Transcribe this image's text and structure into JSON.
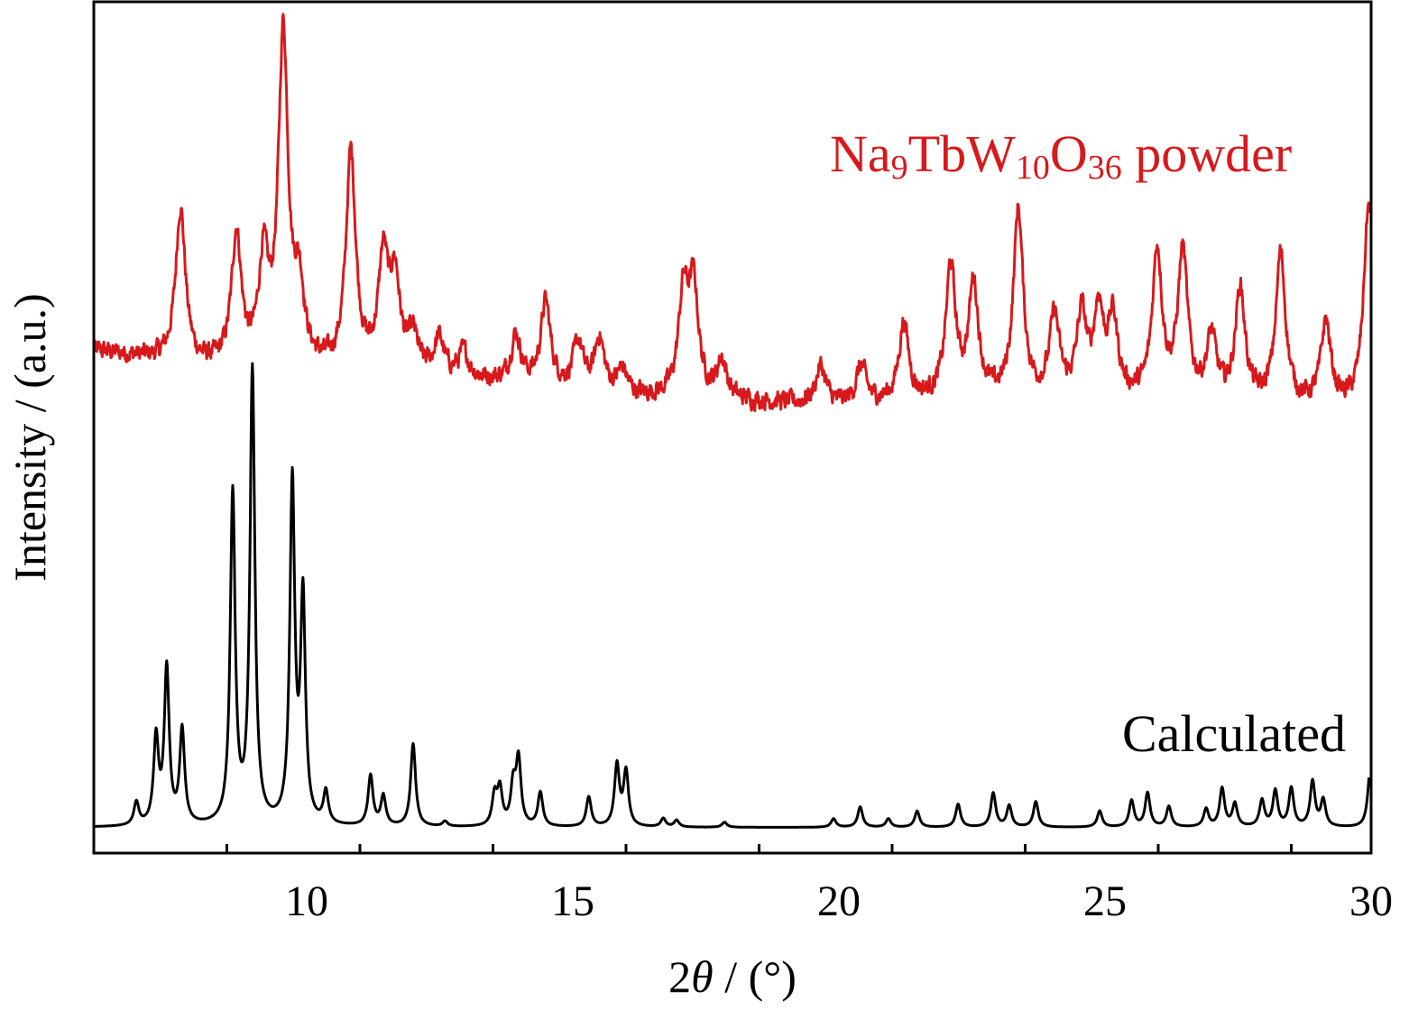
{
  "chart_data": {
    "type": "line",
    "title": "",
    "xlabel": {
      "prefix": "2",
      "symbol": "θ",
      "suffix": " / (°)"
    },
    "ylabel": "Intensity / (a.u.)",
    "xlim": [
      6,
      30
    ],
    "ylim": [
      0,
      100
    ],
    "x_major_ticks": [
      10,
      15,
      20,
      25,
      30
    ],
    "x_tick_labels": [
      "10",
      "15",
      "20",
      "25",
      "30"
    ],
    "x_minor_step": 2.5,
    "grid": false,
    "y_ticks_shown": false,
    "series": [
      {
        "name": "Na9TbW10O36 powder",
        "label_parts": {
          "a": "Na",
          "s1": "9",
          "b": "TbW",
          "s2": "10",
          "c": "O",
          "s3": "36",
          "d": " powder"
        },
        "color": "#d7191c",
        "peak_width": 0.11,
        "noise": 0.9,
        "baseline": [
          [
            6,
            59
          ],
          [
            8,
            57
          ],
          [
            10,
            56.5
          ],
          [
            12,
            56
          ],
          [
            14,
            55
          ],
          [
            16,
            53.5
          ],
          [
            18,
            53
          ],
          [
            20,
            52.5
          ],
          [
            22,
            53
          ],
          [
            26,
            53
          ],
          [
            30,
            52
          ]
        ],
        "peaks": [
          [
            7.63,
            75.6
          ],
          [
            8.68,
            72.1
          ],
          [
            9.19,
            68.4
          ],
          [
            9.56,
            95.4
          ],
          [
            9.86,
            65.3
          ],
          [
            10.83,
            81.7
          ],
          [
            11.44,
            69.0
          ],
          [
            11.66,
            66.5
          ],
          [
            12.0,
            60
          ],
          [
            12.49,
            60
          ],
          [
            12.95,
            58.5
          ],
          [
            13.93,
            60.5
          ],
          [
            14.49,
            64.4
          ],
          [
            15.1,
            59.5
          ],
          [
            15.5,
            60
          ],
          [
            15.93,
            56.5
          ],
          [
            17.08,
            65.0
          ],
          [
            17.27,
            65.5
          ],
          [
            17.8,
            57.5
          ],
          [
            19.66,
            57
          ],
          [
            20.42,
            57
          ],
          [
            21.22,
            62
          ],
          [
            22.1,
            68.4
          ],
          [
            22.53,
            66.3
          ],
          [
            23.37,
            75.1
          ],
          [
            24.05,
            62.5
          ],
          [
            24.56,
            62.5
          ],
          [
            24.88,
            63
          ],
          [
            25.15,
            62
          ],
          [
            25.98,
            70.3
          ],
          [
            26.46,
            70.0
          ],
          [
            27.0,
            60
          ],
          [
            27.54,
            65.8
          ],
          [
            28.3,
            70.0
          ],
          [
            29.15,
            62
          ],
          [
            29.95,
            75.6
          ]
        ]
      },
      {
        "name": "Calculated",
        "color": "#000000",
        "peak_width": 0.055,
        "noise": 0,
        "baseline": [
          [
            6,
            3
          ],
          [
            30,
            3
          ]
        ],
        "peaks": [
          [
            6.8,
            5.7
          ],
          [
            7.17,
            13.1
          ],
          [
            7.37,
            21.3
          ],
          [
            7.66,
            14.1
          ],
          [
            8.61,
            41.8
          ],
          [
            8.98,
            56.3
          ],
          [
            9.73,
            43.0
          ],
          [
            9.93,
            29.2
          ],
          [
            10.36,
            6.8
          ],
          [
            11.2,
            8.9
          ],
          [
            11.44,
            6.5
          ],
          [
            12.0,
            12.7
          ],
          [
            12.6,
            3.6
          ],
          [
            13.53,
            6.5
          ],
          [
            13.63,
            7.2
          ],
          [
            13.88,
            7.5
          ],
          [
            13.98,
            10.7
          ],
          [
            14.39,
            7.0
          ],
          [
            15.3,
            6.5
          ],
          [
            15.83,
            10.2
          ],
          [
            16.0,
            9.4
          ],
          [
            16.7,
            4.0
          ],
          [
            16.95,
            3.8
          ],
          [
            17.85,
            3.6
          ],
          [
            19.9,
            4.0
          ],
          [
            20.4,
            5.4
          ],
          [
            20.93,
            4.0
          ],
          [
            21.47,
            4.9
          ],
          [
            22.24,
            5.7
          ],
          [
            22.9,
            7.0
          ],
          [
            23.2,
            5.5
          ],
          [
            23.7,
            6.0
          ],
          [
            24.9,
            4.9
          ],
          [
            25.5,
            6.1
          ],
          [
            25.8,
            7.0
          ],
          [
            26.2,
            5.4
          ],
          [
            26.9,
            5.1
          ],
          [
            27.2,
            7.5
          ],
          [
            27.44,
            5.7
          ],
          [
            27.95,
            6.1
          ],
          [
            28.2,
            7.2
          ],
          [
            28.5,
            7.5
          ],
          [
            28.9,
            8.3
          ],
          [
            29.1,
            6.1
          ],
          [
            29.98,
            9.6
          ]
        ]
      }
    ]
  }
}
